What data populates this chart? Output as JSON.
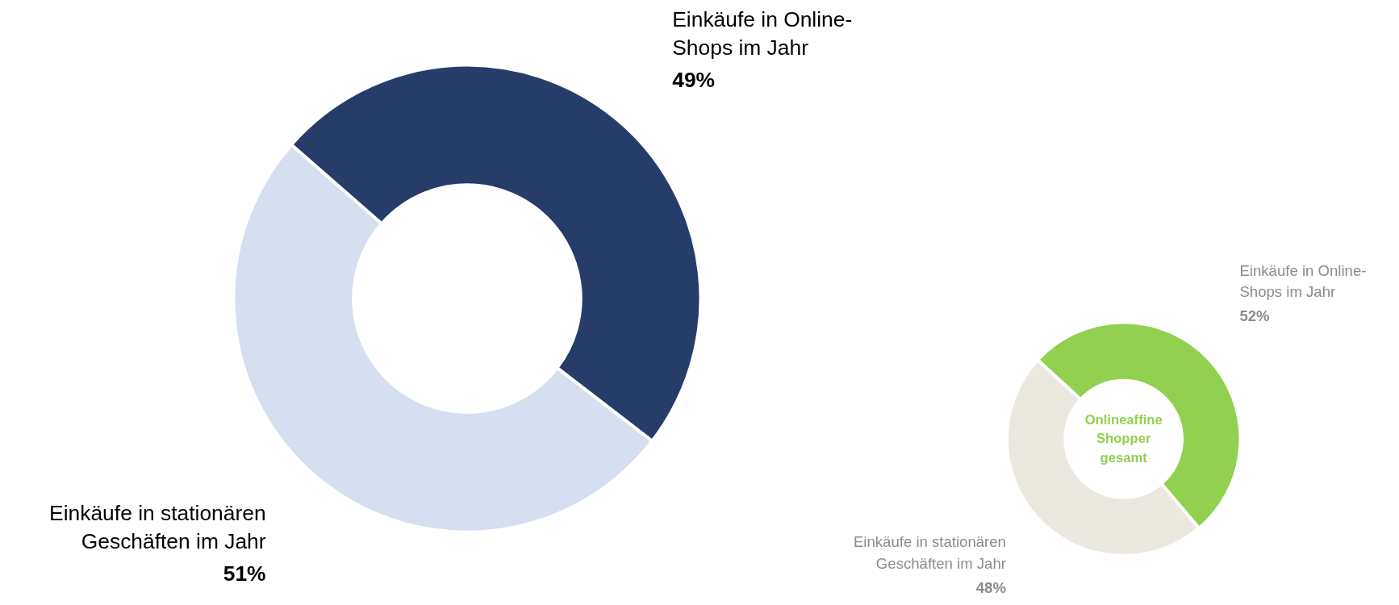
{
  "chart_data": [
    {
      "type": "donut",
      "categories": [
        "Einkäufe in Online-\nShops im Jahr",
        "Einkäufe in stationären\nGeschäften im Jahr"
      ],
      "values": [
        49,
        51
      ],
      "value_labels": [
        "49%",
        "51%"
      ],
      "colors": [
        "#253d68",
        "#d5dff0"
      ]
    },
    {
      "type": "donut",
      "title": "Onlineaffine\nShopper\ngesamt",
      "categories": [
        "Einkäufe in Online-\nShops im Jahr",
        "Einkäufe in stationären\nGeschäften im Jahr"
      ],
      "values": [
        52,
        48
      ],
      "value_labels": [
        "52%",
        "48%"
      ],
      "colors": [
        "#92d050",
        "#ebe9df"
      ]
    }
  ]
}
